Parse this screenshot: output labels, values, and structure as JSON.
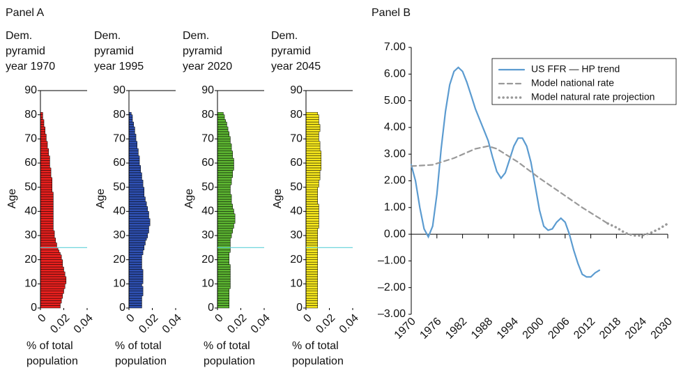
{
  "panel_labels": [
    "Panel A",
    "Panel B"
  ],
  "chart_data": [
    {
      "type": "bar",
      "orientation": "horizontal",
      "title": "Dem. pyramid year 1970",
      "xlabel": "% of total population",
      "ylabel": "Age",
      "color": "#e8201e",
      "hline": 25,
      "hline_color": "#5fd0d8",
      "y": [
        0,
        1,
        2,
        3,
        4,
        5,
        6,
        7,
        8,
        9,
        10,
        11,
        12,
        13,
        14,
        15,
        16,
        17,
        18,
        19,
        20,
        21,
        22,
        23,
        24,
        25,
        26,
        27,
        28,
        29,
        30,
        31,
        32,
        33,
        34,
        35,
        36,
        37,
        38,
        39,
        40,
        41,
        42,
        43,
        44,
        45,
        46,
        47,
        48,
        49,
        50,
        51,
        52,
        53,
        54,
        55,
        56,
        57,
        58,
        59,
        60,
        61,
        62,
        63,
        64,
        65,
        66,
        67,
        68,
        69,
        70,
        71,
        72,
        73,
        74,
        75,
        76,
        77,
        78,
        79,
        80
      ],
      "values": [
        0.017,
        0.017,
        0.018,
        0.018,
        0.019,
        0.019,
        0.02,
        0.02,
        0.021,
        0.021,
        0.022,
        0.022,
        0.022,
        0.021,
        0.021,
        0.02,
        0.02,
        0.019,
        0.019,
        0.019,
        0.018,
        0.018,
        0.017,
        0.016,
        0.015,
        0.014,
        0.014,
        0.013,
        0.013,
        0.012,
        0.012,
        0.012,
        0.011,
        0.011,
        0.011,
        0.011,
        0.011,
        0.011,
        0.011,
        0.011,
        0.011,
        0.011,
        0.011,
        0.011,
        0.011,
        0.011,
        0.011,
        0.011,
        0.01,
        0.01,
        0.01,
        0.01,
        0.01,
        0.01,
        0.009,
        0.009,
        0.009,
        0.009,
        0.008,
        0.008,
        0.008,
        0.008,
        0.008,
        0.007,
        0.007,
        0.007,
        0.006,
        0.006,
        0.006,
        0.005,
        0.005,
        0.005,
        0.004,
        0.004,
        0.004,
        0.003,
        0.003,
        0.003,
        0.002,
        0.002,
        0.002
      ],
      "xlim": [
        0,
        0.04
      ],
      "xticks": [
        0,
        0.02,
        0.04
      ],
      "ylim": [
        0,
        90
      ],
      "yticks": [
        0,
        10,
        20,
        30,
        40,
        50,
        60,
        70,
        80,
        90
      ]
    },
    {
      "type": "bar",
      "orientation": "horizontal",
      "title": "Dem. pyramid year 1995",
      "xlabel": "% of total population",
      "ylabel": "Age",
      "color": "#2e4fb0",
      "y": [
        0,
        1,
        2,
        3,
        4,
        5,
        6,
        7,
        8,
        9,
        10,
        11,
        12,
        13,
        14,
        15,
        16,
        17,
        18,
        19,
        20,
        21,
        22,
        23,
        24,
        25,
        26,
        27,
        28,
        29,
        30,
        31,
        32,
        33,
        34,
        35,
        36,
        37,
        38,
        39,
        40,
        41,
        42,
        43,
        44,
        45,
        46,
        47,
        48,
        49,
        50,
        51,
        52,
        53,
        54,
        55,
        56,
        57,
        58,
        59,
        60,
        61,
        62,
        63,
        64,
        65,
        66,
        67,
        68,
        69,
        70,
        71,
        72,
        73,
        74,
        75,
        76,
        77,
        78,
        79,
        80
      ],
      "values": [
        0.011,
        0.011,
        0.011,
        0.011,
        0.011,
        0.012,
        0.012,
        0.012,
        0.012,
        0.011,
        0.012,
        0.012,
        0.012,
        0.012,
        0.012,
        0.012,
        0.011,
        0.011,
        0.011,
        0.011,
        0.011,
        0.011,
        0.012,
        0.012,
        0.013,
        0.013,
        0.014,
        0.014,
        0.015,
        0.016,
        0.016,
        0.017,
        0.017,
        0.017,
        0.018,
        0.018,
        0.018,
        0.017,
        0.017,
        0.017,
        0.016,
        0.016,
        0.015,
        0.015,
        0.014,
        0.014,
        0.013,
        0.013,
        0.013,
        0.013,
        0.012,
        0.012,
        0.012,
        0.011,
        0.011,
        0.011,
        0.01,
        0.01,
        0.01,
        0.009,
        0.009,
        0.009,
        0.009,
        0.008,
        0.008,
        0.008,
        0.007,
        0.007,
        0.007,
        0.006,
        0.006,
        0.006,
        0.005,
        0.005,
        0.005,
        0.004,
        0.004,
        0.003,
        0.003,
        0.003,
        0.002
      ],
      "xlim": [
        0,
        0.04
      ],
      "xticks": [
        0,
        0.02,
        0.04
      ],
      "ylim": [
        0,
        90
      ],
      "yticks": [
        0,
        10,
        20,
        30,
        40,
        50,
        60,
        70,
        80,
        90
      ]
    },
    {
      "type": "bar",
      "orientation": "horizontal",
      "title": "Dem. pyramid year 2020",
      "xlabel": "% of total population",
      "ylabel": "Age",
      "color": "#5cb531",
      "hline": 25,
      "hline_color": "#5fd0d8",
      "y": [
        0,
        1,
        2,
        3,
        4,
        5,
        6,
        7,
        8,
        9,
        10,
        11,
        12,
        13,
        14,
        15,
        16,
        17,
        18,
        19,
        20,
        21,
        22,
        23,
        24,
        25,
        26,
        27,
        28,
        29,
        30,
        31,
        32,
        33,
        34,
        35,
        36,
        37,
        38,
        39,
        40,
        41,
        42,
        43,
        44,
        45,
        46,
        47,
        48,
        49,
        50,
        51,
        52,
        53,
        54,
        55,
        56,
        57,
        58,
        59,
        60,
        61,
        62,
        63,
        64,
        65,
        66,
        67,
        68,
        69,
        70,
        71,
        72,
        73,
        74,
        75,
        76,
        77,
        78,
        79,
        80
      ],
      "values": [
        0.01,
        0.01,
        0.01,
        0.01,
        0.01,
        0.01,
        0.01,
        0.01,
        0.011,
        0.011,
        0.011,
        0.011,
        0.011,
        0.011,
        0.011,
        0.011,
        0.011,
        0.011,
        0.01,
        0.01,
        0.01,
        0.01,
        0.01,
        0.011,
        0.011,
        0.011,
        0.011,
        0.011,
        0.011,
        0.012,
        0.012,
        0.013,
        0.013,
        0.014,
        0.014,
        0.015,
        0.015,
        0.015,
        0.015,
        0.014,
        0.014,
        0.013,
        0.013,
        0.012,
        0.012,
        0.012,
        0.012,
        0.011,
        0.011,
        0.011,
        0.011,
        0.012,
        0.012,
        0.012,
        0.013,
        0.013,
        0.013,
        0.014,
        0.014,
        0.014,
        0.014,
        0.014,
        0.013,
        0.013,
        0.013,
        0.012,
        0.012,
        0.012,
        0.011,
        0.011,
        0.011,
        0.01,
        0.01,
        0.009,
        0.009,
        0.008,
        0.008,
        0.007,
        0.006,
        0.006,
        0.005
      ],
      "xlim": [
        0,
        0.04
      ],
      "xticks": [
        0,
        0.02,
        0.04
      ],
      "ylim": [
        0,
        90
      ],
      "yticks": [
        0,
        10,
        20,
        30,
        40,
        50,
        60,
        70,
        80,
        90
      ]
    },
    {
      "type": "bar",
      "orientation": "horizontal",
      "title": "Dem. pyramid year 2045",
      "xlabel": "% of total population",
      "ylabel": "Age",
      "color": "#f5e61c",
      "hline": 25,
      "hline_color": "#5fd0d8",
      "y": [
        0,
        1,
        2,
        3,
        4,
        5,
        6,
        7,
        8,
        9,
        10,
        11,
        12,
        13,
        14,
        15,
        16,
        17,
        18,
        19,
        20,
        21,
        22,
        23,
        24,
        25,
        26,
        27,
        28,
        29,
        30,
        31,
        32,
        33,
        34,
        35,
        36,
        37,
        38,
        39,
        40,
        41,
        42,
        43,
        44,
        45,
        46,
        47,
        48,
        49,
        50,
        51,
        52,
        53,
        54,
        55,
        56,
        57,
        58,
        59,
        60,
        61,
        62,
        63,
        64,
        65,
        66,
        67,
        68,
        69,
        70,
        71,
        72,
        73,
        74,
        75,
        76,
        77,
        78,
        79,
        80
      ],
      "values": [
        0.01,
        0.01,
        0.01,
        0.01,
        0.01,
        0.01,
        0.01,
        0.01,
        0.01,
        0.01,
        0.01,
        0.01,
        0.01,
        0.01,
        0.01,
        0.01,
        0.01,
        0.01,
        0.01,
        0.01,
        0.01,
        0.01,
        0.01,
        0.01,
        0.01,
        0.01,
        0.01,
        0.01,
        0.01,
        0.01,
        0.01,
        0.01,
        0.01,
        0.011,
        0.011,
        0.011,
        0.011,
        0.011,
        0.011,
        0.011,
        0.011,
        0.011,
        0.011,
        0.01,
        0.01,
        0.01,
        0.01,
        0.01,
        0.01,
        0.01,
        0.011,
        0.011,
        0.011,
        0.012,
        0.012,
        0.012,
        0.012,
        0.013,
        0.013,
        0.013,
        0.013,
        0.013,
        0.013,
        0.013,
        0.013,
        0.012,
        0.012,
        0.012,
        0.012,
        0.011,
        0.011,
        0.011,
        0.011,
        0.012,
        0.012,
        0.012,
        0.011,
        0.011,
        0.011,
        0.011,
        0.01
      ],
      "xlim": [
        0,
        0.04
      ],
      "xticks": [
        0,
        0.02,
        0.04
      ],
      "ylim": [
        0,
        90
      ],
      "yticks": [
        0,
        10,
        20,
        30,
        40,
        50,
        60,
        70,
        80,
        90
      ]
    },
    {
      "type": "line",
      "legend": "upper right",
      "series": [
        {
          "name": "US FFR — HP trend",
          "color": "#5b9bd0",
          "style": "solid",
          "x": [
            1970,
            1971,
            1972,
            1973,
            1974,
            1975,
            1976,
            1977,
            1978,
            1979,
            1980,
            1981,
            1982,
            1983,
            1984,
            1985,
            1986,
            1987,
            1988,
            1989,
            1990,
            1991,
            1992,
            1993,
            1994,
            1995,
            1996,
            1997,
            1998,
            1999,
            2000,
            2001,
            2002,
            2003,
            2004,
            2005,
            2006,
            2007,
            2008,
            2009,
            2010,
            2011,
            2012,
            2013,
            2014
          ],
          "values": [
            2.6,
            2.0,
            1.0,
            0.2,
            -0.1,
            0.3,
            1.5,
            3.2,
            4.6,
            5.6,
            6.1,
            6.25,
            6.1,
            5.7,
            5.2,
            4.7,
            4.3,
            3.9,
            3.5,
            2.9,
            2.35,
            2.1,
            2.3,
            2.8,
            3.3,
            3.6,
            3.6,
            3.3,
            2.7,
            1.8,
            0.9,
            0.3,
            0.15,
            0.2,
            0.45,
            0.6,
            0.45,
            0.0,
            -0.6,
            -1.1,
            -1.5,
            -1.6,
            -1.6,
            -1.45,
            -1.35
          ]
        },
        {
          "name": "Model national rate",
          "color": "#999999",
          "style": "dashed",
          "x": [
            1970,
            1975,
            1980,
            1985,
            1988,
            1990,
            1995,
            2000,
            2005,
            2010,
            2014,
            2016
          ],
          "values": [
            2.55,
            2.6,
            2.85,
            3.2,
            3.3,
            3.2,
            2.7,
            2.1,
            1.55,
            1.0,
            0.6,
            0.4
          ]
        },
        {
          "name": "Model natural rate projection",
          "color": "#999999",
          "style": "dotted",
          "x": [
            2016,
            2018,
            2020,
            2022,
            2024,
            2026,
            2028,
            2030
          ],
          "values": [
            0.4,
            0.25,
            0.05,
            -0.05,
            -0.05,
            0.05,
            0.2,
            0.4
          ]
        }
      ],
      "xlim": [
        1970,
        2030
      ],
      "xticks": [
        1970,
        1976,
        1982,
        1988,
        1994,
        2000,
        2006,
        2012,
        2018,
        2024,
        2030
      ],
      "ylim": [
        -3,
        7
      ],
      "yticks": [
        {
          "value": -3,
          "label": "–3.00"
        },
        {
          "value": -2,
          "label": "–2.00"
        },
        {
          "value": -1,
          "label": "–1.00"
        },
        {
          "value": 0,
          "label": "0.00"
        },
        {
          "value": 1,
          "label": "1.00"
        },
        {
          "value": 2,
          "label": "2.00"
        },
        {
          "value": 3,
          "label": "3.00"
        },
        {
          "value": 4,
          "label": "4.00"
        },
        {
          "value": 5,
          "label": "5.00"
        },
        {
          "value": 6,
          "label": "6.00"
        },
        {
          "value": 7,
          "label": "7.00"
        }
      ]
    }
  ]
}
